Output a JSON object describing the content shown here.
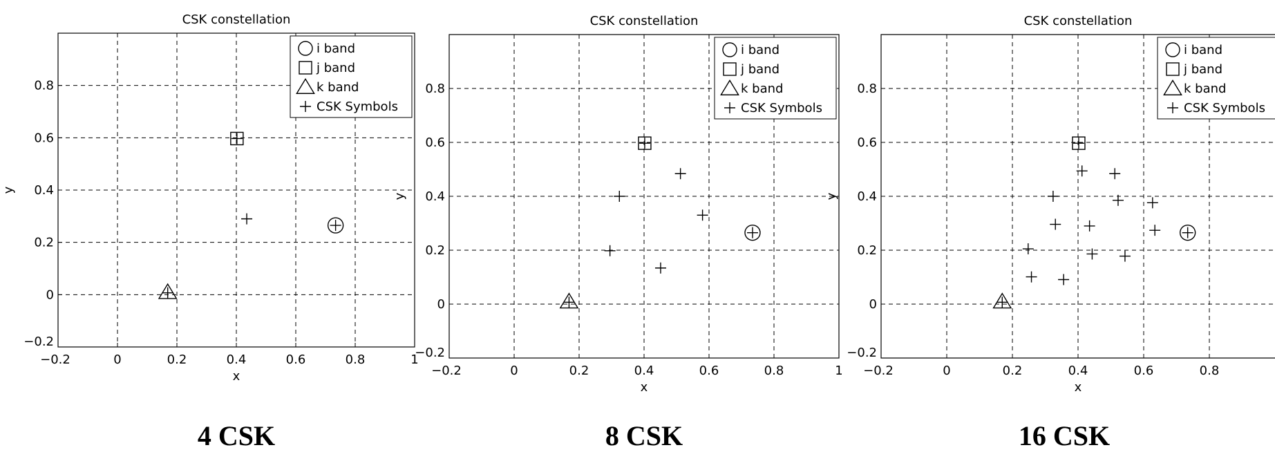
{
  "chart_data": [
    {
      "type": "scatter",
      "title": "CSK constellation",
      "xlabel": "x",
      "ylabel": "y",
      "caption": "4 CSK",
      "xlim": [
        -0.2,
        1
      ],
      "ylim": [
        -0.2,
        1
      ],
      "xticks": [
        "−0.2",
        "0",
        "0.2",
        "0.4",
        "0.6",
        "0.8",
        "1"
      ],
      "yticks": [
        "−0.2",
        "0",
        "0.2",
        "0.4",
        "0.6",
        "0.8"
      ],
      "grid": true,
      "legend_position": "top-right",
      "legend": [
        {
          "marker": "circle",
          "label": "i band"
        },
        {
          "marker": "square",
          "label": "j band"
        },
        {
          "marker": "triangle",
          "label": "k band"
        },
        {
          "marker": "plus",
          "label": "CSK Symbols"
        }
      ],
      "i_band": {
        "x": 0.734,
        "y": 0.265
      },
      "j_band": {
        "x": 0.402,
        "y": 0.597
      },
      "k_band": {
        "x": 0.169,
        "y": 0.007
      },
      "symbols": [
        {
          "x": 0.734,
          "y": 0.265
        },
        {
          "x": 0.402,
          "y": 0.597
        },
        {
          "x": 0.169,
          "y": 0.007
        },
        {
          "x": 0.435,
          "y": 0.29
        }
      ]
    },
    {
      "type": "scatter",
      "title": "CSK constellation",
      "xlabel": "x",
      "ylabel": "y",
      "caption": "8 CSK",
      "xlim": [
        -0.2,
        1
      ],
      "ylim": [
        -0.2,
        1
      ],
      "xticks": [
        "−0.2",
        "0",
        "0.2",
        "0.4",
        "0.6",
        "0.8",
        "1"
      ],
      "yticks": [
        "−0.2",
        "0",
        "0.2",
        "0.4",
        "0.6",
        "0.8"
      ],
      "grid": true,
      "legend_position": "top-right",
      "legend": [
        {
          "marker": "circle",
          "label": "i band"
        },
        {
          "marker": "square",
          "label": "j band"
        },
        {
          "marker": "triangle",
          "label": "k band"
        },
        {
          "marker": "plus",
          "label": "CSK Symbols"
        }
      ],
      "i_band": {
        "x": 0.734,
        "y": 0.265
      },
      "j_band": {
        "x": 0.402,
        "y": 0.597
      },
      "k_band": {
        "x": 0.169,
        "y": 0.007
      },
      "symbols": [
        {
          "x": 0.734,
          "y": 0.265
        },
        {
          "x": 0.402,
          "y": 0.597
        },
        {
          "x": 0.169,
          "y": 0.007
        },
        {
          "x": 0.512,
          "y": 0.484
        },
        {
          "x": 0.324,
          "y": 0.4
        },
        {
          "x": 0.58,
          "y": 0.33
        },
        {
          "x": 0.295,
          "y": 0.198
        },
        {
          "x": 0.451,
          "y": 0.134
        }
      ]
    },
    {
      "type": "scatter",
      "title": "CSK constellation",
      "xlabel": "x",
      "ylabel": "y",
      "caption": "16 CSK",
      "xlim": [
        -0.2,
        1
      ],
      "ylim": [
        -0.2,
        1
      ],
      "xticks": [
        "−0.2",
        "0",
        "0.2",
        "0.4",
        "0.6",
        "0.8"
      ],
      "yticks": [
        "−0.2",
        "0",
        "0.2",
        "0.4",
        "0.6",
        "0.8"
      ],
      "grid": true,
      "legend_position": "top-right",
      "legend": [
        {
          "marker": "circle",
          "label": "i band"
        },
        {
          "marker": "square",
          "label": "j band"
        },
        {
          "marker": "triangle",
          "label": "k band"
        },
        {
          "marker": "plus",
          "label": "CSK Symbols"
        }
      ],
      "i_band": {
        "x": 0.734,
        "y": 0.265
      },
      "j_band": {
        "x": 0.402,
        "y": 0.597
      },
      "k_band": {
        "x": 0.169,
        "y": 0.007
      },
      "symbols": [
        {
          "x": 0.734,
          "y": 0.265
        },
        {
          "x": 0.402,
          "y": 0.597
        },
        {
          "x": 0.169,
          "y": 0.007
        },
        {
          "x": 0.412,
          "y": 0.494
        },
        {
          "x": 0.512,
          "y": 0.484
        },
        {
          "x": 0.324,
          "y": 0.4
        },
        {
          "x": 0.522,
          "y": 0.385
        },
        {
          "x": 0.627,
          "y": 0.376
        },
        {
          "x": 0.331,
          "y": 0.296
        },
        {
          "x": 0.435,
          "y": 0.29
        },
        {
          "x": 0.634,
          "y": 0.274
        },
        {
          "x": 0.248,
          "y": 0.205
        },
        {
          "x": 0.443,
          "y": 0.186
        },
        {
          "x": 0.543,
          "y": 0.178
        },
        {
          "x": 0.258,
          "y": 0.101
        },
        {
          "x": 0.356,
          "y": 0.091
        }
      ]
    }
  ]
}
